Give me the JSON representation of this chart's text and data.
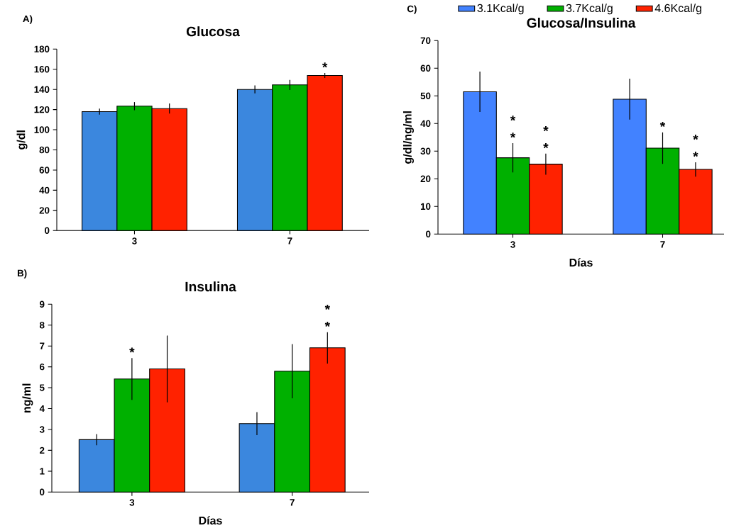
{
  "chart_data": [
    {
      "type": "bar",
      "title": "Glucosa",
      "ylabel": "g/dl",
      "annotations": [
        "A)"
      ],
      "categories": [
        "3",
        "7"
      ],
      "series": [
        {
          "color": "#3b87de",
          "values": [
            118,
            140
          ],
          "errors": [
            3,
            4
          ]
        },
        {
          "color": "#00b000",
          "values": [
            123.4,
            144.5
          ],
          "errors": [
            4,
            5
          ]
        },
        {
          "color": "#ff2200",
          "values": [
            121,
            153.8
          ],
          "errors": [
            5,
            2.5
          ],
          "value_labels": [
            null,
            "*"
          ]
        }
      ],
      "ylim": [
        0,
        180
      ],
      "yticks": [
        0,
        20,
        40,
        60,
        80,
        100,
        120,
        140,
        160,
        180
      ]
    },
    {
      "type": "bar",
      "title": "Insulina",
      "xlabel": "Días",
      "ylabel": "ng/ml",
      "annotations": [
        "B)"
      ],
      "categories": [
        "3",
        "7"
      ],
      "series": [
        {
          "color": "#3b87de",
          "values": [
            2.51,
            3.28
          ],
          "errors": [
            0.27,
            0.55
          ]
        },
        {
          "color": "#00b000",
          "values": [
            5.42,
            5.79
          ],
          "errors": [
            1,
            1.3
          ],
          "value_labels": [
            "*",
            null
          ]
        },
        {
          "color": "#ff2200",
          "values": [
            5.9,
            6.91
          ],
          "errors": [
            1.6,
            0.75
          ],
          "value_labels": [
            null,
            "* *"
          ]
        }
      ],
      "ylim": [
        0,
        9
      ],
      "yticks": [
        0,
        1,
        2,
        3,
        4,
        5,
        6,
        7,
        8,
        9
      ]
    },
    {
      "type": "bar",
      "title": "Glucosa/Insulina",
      "xlabel": "Días",
      "ylabel": "g/dl/ng/ml",
      "annotations": [
        "C)"
      ],
      "categories": [
        "3",
        "7"
      ],
      "legend": "top",
      "series": [
        {
          "name": "3.1Kcal/g",
          "color": "#4282ff",
          "values": [
            51.5,
            48.8
          ],
          "errors": [
            7.3,
            7.4
          ]
        },
        {
          "name": "3.7Kcal/g",
          "color": "#00b000",
          "values": [
            27.6,
            31.1
          ],
          "errors": [
            5.3,
            5.7
          ],
          "value_labels": [
            "* *",
            "*"
          ]
        },
        {
          "name": "4.6Kcal/g",
          "color": "#ff2200",
          "values": [
            25.3,
            23.4
          ],
          "errors": [
            3.8,
            2.6
          ],
          "value_labels": [
            "* *",
            "* *"
          ]
        }
      ],
      "ylim": [
        0,
        70
      ],
      "yticks": [
        0,
        10,
        20,
        30,
        40,
        50,
        60,
        70
      ]
    }
  ]
}
